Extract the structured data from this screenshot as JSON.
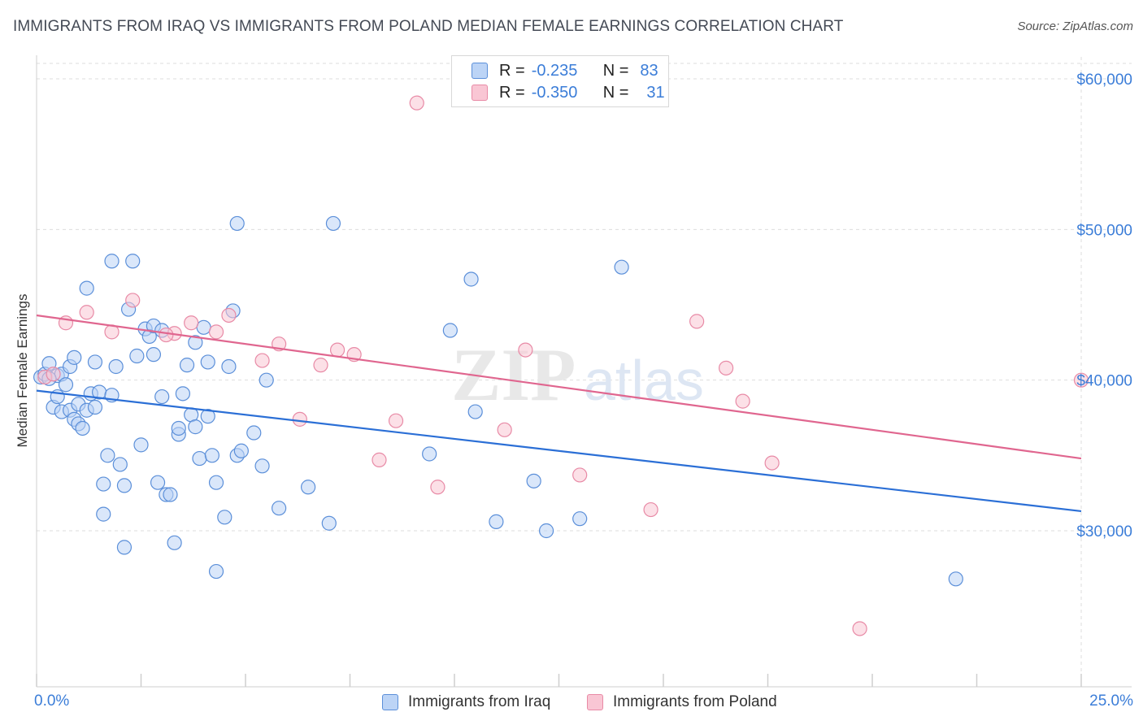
{
  "title": "IMMIGRANTS FROM IRAQ VS IMMIGRANTS FROM POLAND MEDIAN FEMALE EARNINGS CORRELATION CHART",
  "source": "Source: ZipAtlas.com",
  "legend": {
    "iraq": {
      "r_label": "R =",
      "r_value": "-0.235",
      "n_label": "N =",
      "n_value": "83"
    },
    "poland": {
      "r_label": "R =",
      "r_value": "-0.350",
      "n_label": "N =",
      "n_value": "31"
    }
  },
  "bottom_legend": {
    "iraq": "Immigrants from Iraq",
    "poland": "Immigrants from Poland"
  },
  "x_axis": {
    "min_label": "0.0%",
    "max_label": "25.0%"
  },
  "colors": {
    "iraq_fill": "#bcd4f6",
    "iraq_stroke": "#5b8fd9",
    "iraq_line": "#2b6fd6",
    "poland_fill": "#f9c6d4",
    "poland_stroke": "#e88aa6",
    "poland_line": "#e0668f",
    "tick_label": "#3b7dd8",
    "grid": "#dddddd"
  },
  "chart_data": {
    "type": "scatter",
    "title": "IMMIGRANTS FROM IRAQ VS IMMIGRANTS FROM POLAND MEDIAN FEMALE EARNINGS CORRELATION CHART",
    "xlabel": "",
    "ylabel": "Median Female Earnings",
    "xlim": [
      0,
      25
    ],
    "ylim": [
      21000,
      62000
    ],
    "y_ticks": [
      30000,
      40000,
      50000,
      60000
    ],
    "y_tick_labels": [
      "$30,000",
      "$40,000",
      "$50,000",
      "$60,000"
    ],
    "grid": true,
    "series": [
      {
        "name": "Immigrants from Iraq",
        "R": -0.235,
        "N": 83,
        "trend": {
          "x": [
            0,
            25
          ],
          "y": [
            39300,
            31300
          ]
        },
        "points": [
          [
            0.1,
            40200
          ],
          [
            0.2,
            40400
          ],
          [
            0.3,
            41100
          ],
          [
            0.4,
            38200
          ],
          [
            0.5,
            40300
          ],
          [
            0.5,
            38900
          ],
          [
            0.6,
            37900
          ],
          [
            0.6,
            40400
          ],
          [
            0.7,
            39700
          ],
          [
            0.8,
            38000
          ],
          [
            0.8,
            40900
          ],
          [
            0.9,
            37400
          ],
          [
            0.9,
            41500
          ],
          [
            1.0,
            38400
          ],
          [
            1.0,
            37100
          ],
          [
            1.1,
            36800
          ],
          [
            1.2,
            38000
          ],
          [
            1.2,
            46100
          ],
          [
            1.3,
            39100
          ],
          [
            1.4,
            41200
          ],
          [
            1.4,
            38200
          ],
          [
            1.5,
            39200
          ],
          [
            1.6,
            33100
          ],
          [
            1.6,
            31100
          ],
          [
            1.7,
            35000
          ],
          [
            1.8,
            47900
          ],
          [
            1.8,
            39000
          ],
          [
            1.9,
            40900
          ],
          [
            2.0,
            34400
          ],
          [
            2.1,
            33000
          ],
          [
            2.1,
            28900
          ],
          [
            2.2,
            44700
          ],
          [
            2.3,
            47900
          ],
          [
            2.4,
            41600
          ],
          [
            2.5,
            35700
          ],
          [
            2.6,
            43400
          ],
          [
            2.7,
            42900
          ],
          [
            2.8,
            43600
          ],
          [
            2.8,
            41700
          ],
          [
            2.9,
            33200
          ],
          [
            3.0,
            38900
          ],
          [
            3.0,
            43300
          ],
          [
            3.1,
            32400
          ],
          [
            3.2,
            32400
          ],
          [
            3.3,
            29200
          ],
          [
            3.4,
            36400
          ],
          [
            3.4,
            36800
          ],
          [
            3.5,
            39100
          ],
          [
            3.6,
            41000
          ],
          [
            3.7,
            37700
          ],
          [
            3.8,
            42500
          ],
          [
            3.8,
            36900
          ],
          [
            3.9,
            34800
          ],
          [
            4.0,
            43500
          ],
          [
            4.1,
            41200
          ],
          [
            4.1,
            37600
          ],
          [
            4.2,
            35000
          ],
          [
            4.3,
            27300
          ],
          [
            4.3,
            33200
          ],
          [
            4.5,
            30900
          ],
          [
            4.6,
            40900
          ],
          [
            4.7,
            44600
          ],
          [
            4.8,
            35000
          ],
          [
            4.8,
            50400
          ],
          [
            4.9,
            35300
          ],
          [
            5.2,
            36500
          ],
          [
            5.4,
            34300
          ],
          [
            5.5,
            40000
          ],
          [
            5.8,
            31500
          ],
          [
            6.5,
            32900
          ],
          [
            7.0,
            30500
          ],
          [
            7.1,
            50400
          ],
          [
            9.4,
            35100
          ],
          [
            9.9,
            43300
          ],
          [
            10.4,
            46700
          ],
          [
            10.5,
            37900
          ],
          [
            11.0,
            30600
          ],
          [
            11.9,
            33300
          ],
          [
            12.2,
            30000
          ],
          [
            13.0,
            30800
          ],
          [
            14.0,
            47500
          ],
          [
            22.0,
            26800
          ],
          [
            0.3,
            40100
          ]
        ]
      },
      {
        "name": "Immigrants from Poland",
        "R": -0.35,
        "N": 31,
        "trend": {
          "x": [
            0,
            25
          ],
          "y": [
            44300,
            34800
          ]
        },
        "points": [
          [
            0.2,
            40200
          ],
          [
            0.7,
            43800
          ],
          [
            1.2,
            44500
          ],
          [
            1.8,
            43200
          ],
          [
            2.3,
            45300
          ],
          [
            3.3,
            43100
          ],
          [
            3.7,
            43800
          ],
          [
            4.3,
            43200
          ],
          [
            4.6,
            44300
          ],
          [
            5.4,
            41300
          ],
          [
            5.8,
            42400
          ],
          [
            6.3,
            37400
          ],
          [
            6.8,
            41000
          ],
          [
            7.2,
            42000
          ],
          [
            7.6,
            41700
          ],
          [
            8.2,
            34700
          ],
          [
            8.6,
            37300
          ],
          [
            9.1,
            58400
          ],
          [
            9.6,
            32900
          ],
          [
            11.2,
            36700
          ],
          [
            11.7,
            42000
          ],
          [
            13.0,
            33700
          ],
          [
            14.7,
            31400
          ],
          [
            15.8,
            43900
          ],
          [
            16.5,
            40800
          ],
          [
            16.9,
            38600
          ],
          [
            17.6,
            34500
          ],
          [
            19.7,
            23500
          ],
          [
            25.0,
            40000
          ],
          [
            0.4,
            40400
          ],
          [
            3.1,
            43000
          ]
        ]
      }
    ]
  }
}
